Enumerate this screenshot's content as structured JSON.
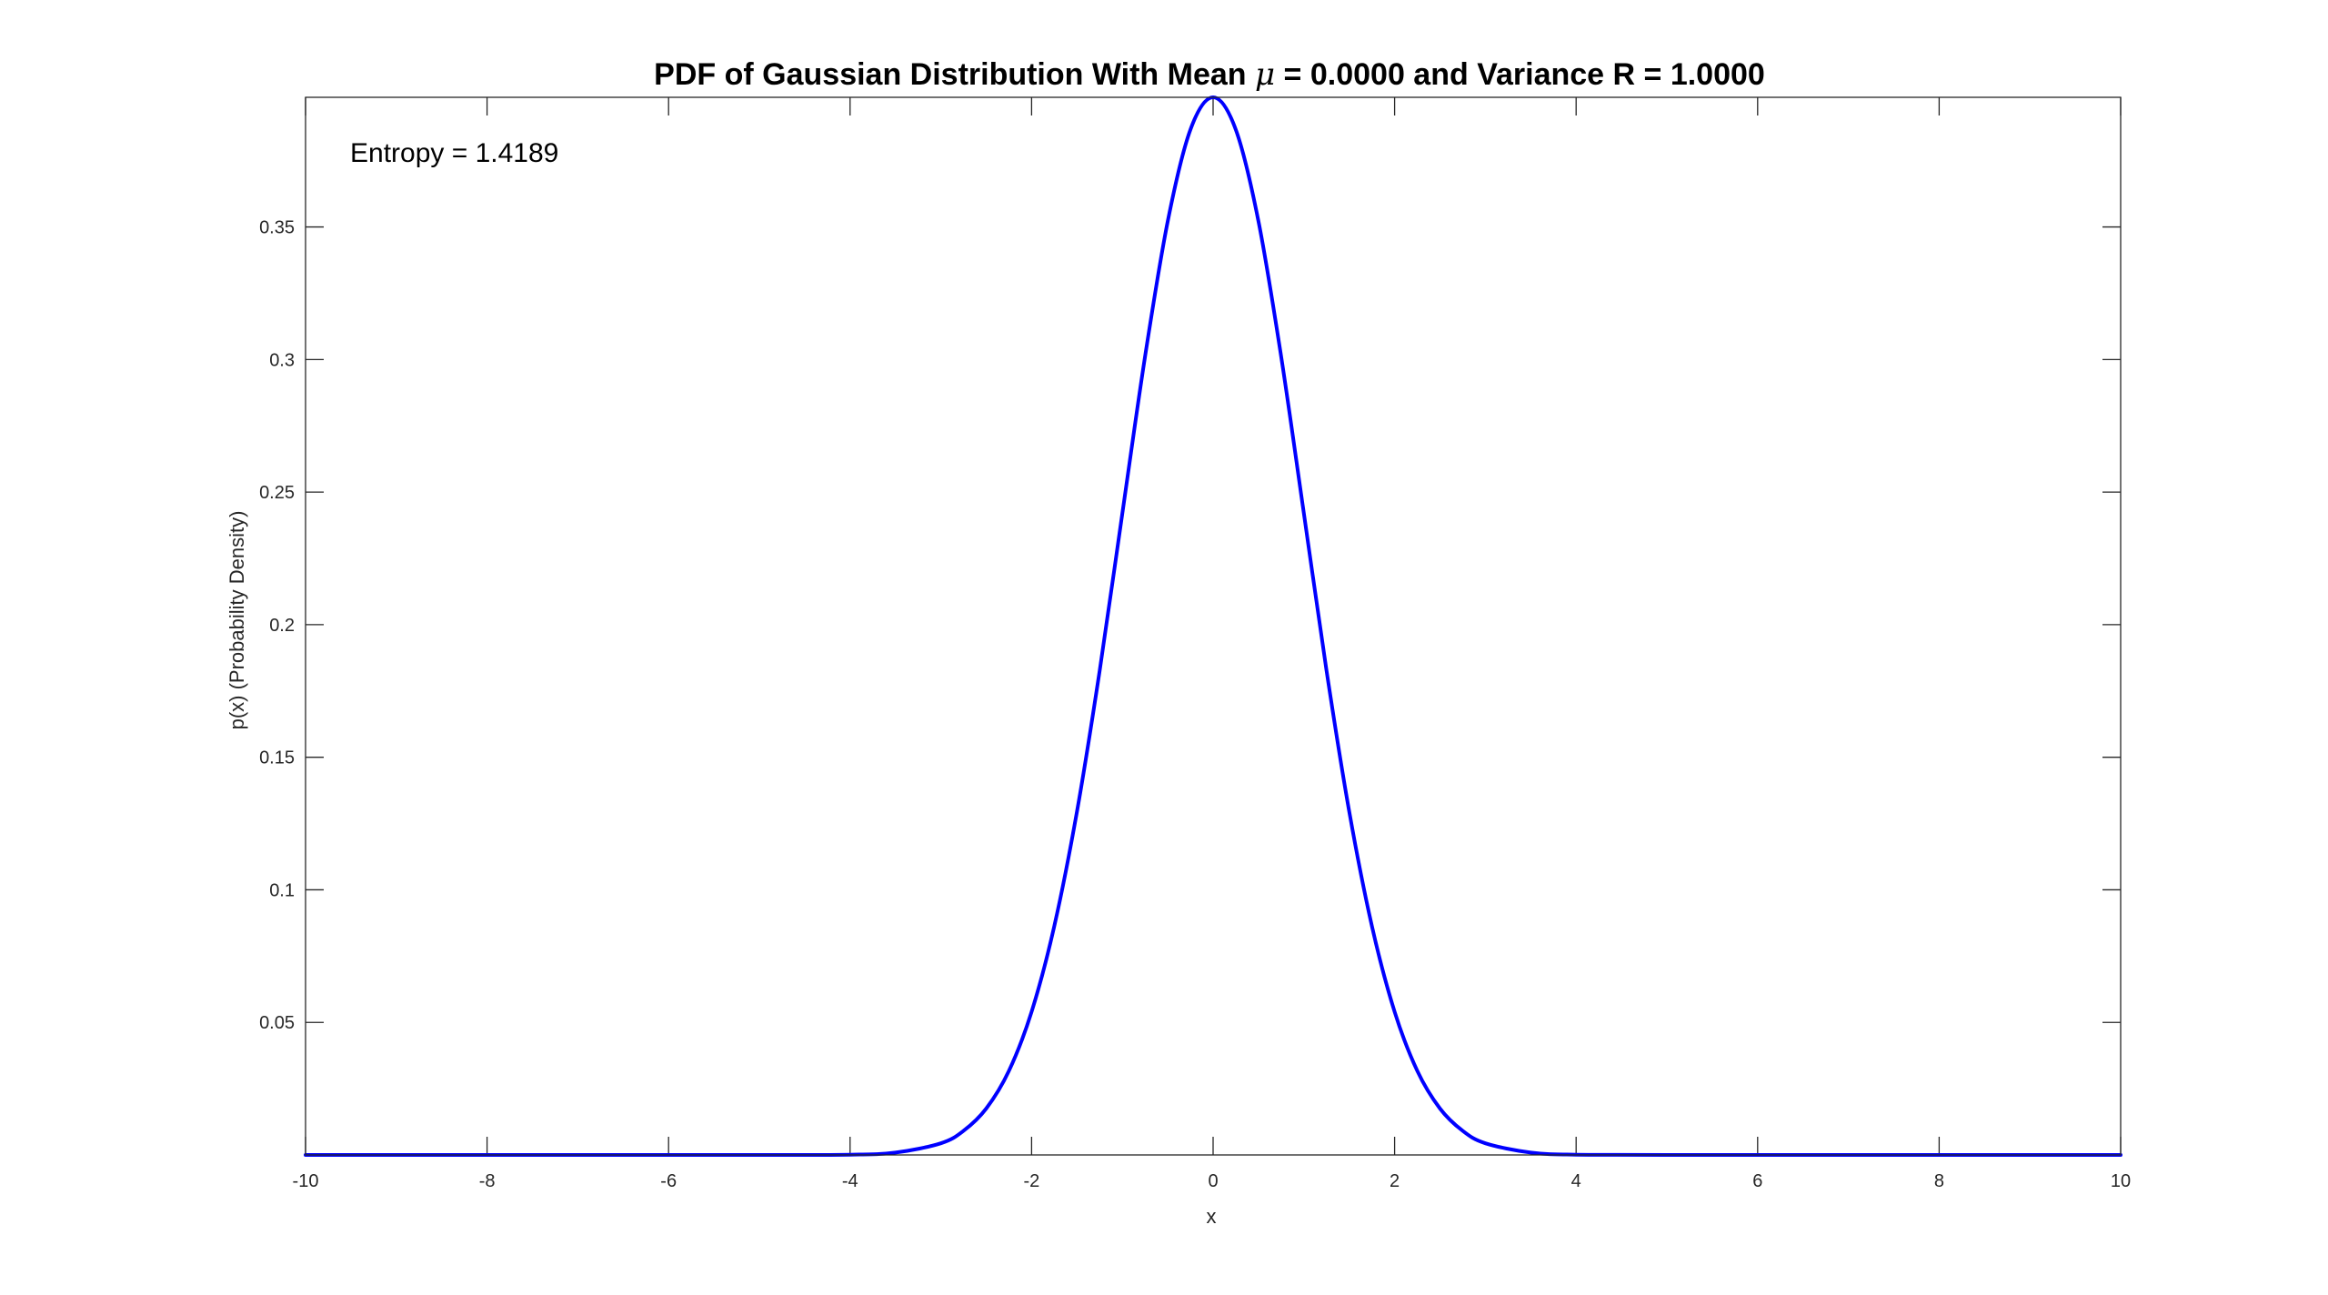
{
  "chart_data": {
    "type": "line",
    "title_prefix": "PDF of Gaussian Distribution With Mean ",
    "title_mu_symbol": "μ",
    "title_suffix": " = 0.0000 and Variance R = 1.0000",
    "xlabel": "x",
    "ylabel": "p(x) (Probability Density)",
    "annotation": "Entropy = 1.4189",
    "xlim": [
      -10,
      10
    ],
    "ylim": [
      0,
      0.3989
    ],
    "x_ticks": [
      -10,
      -8,
      -6,
      -4,
      -2,
      0,
      2,
      4,
      6,
      8,
      10
    ],
    "x_tick_labels": [
      "-10",
      "-8",
      "-6",
      "-4",
      "-2",
      "0",
      "2",
      "4",
      "6",
      "8",
      "10"
    ],
    "y_ticks": [
      0.05,
      0.1,
      0.15,
      0.2,
      0.25,
      0.3,
      0.35
    ],
    "y_tick_labels": [
      "0.05",
      "0.1",
      "0.15",
      "0.2",
      "0.25",
      "0.3",
      "0.35"
    ],
    "grid": false,
    "line_color": "#0000ff",
    "series": [
      {
        "x": [
          -10,
          -5,
          -4,
          -3.5,
          -3,
          -2.75,
          -2.5,
          -2.25,
          -2,
          -1.75,
          -1.5,
          -1.25,
          -1,
          -0.75,
          -0.5,
          -0.25,
          0,
          0.25,
          0.5,
          0.75,
          1,
          1.25,
          1.5,
          1.75,
          2,
          2.25,
          2.5,
          2.75,
          3,
          3.5,
          4,
          5,
          10
        ],
        "y": [
          0.0,
          1.5e-06,
          0.0001,
          0.0009,
          0.0044,
          0.0091,
          0.0175,
          0.0317,
          0.054,
          0.0863,
          0.1295,
          0.1826,
          0.242,
          0.3011,
          0.3521,
          0.3867,
          0.3989,
          0.3867,
          0.3521,
          0.3011,
          0.242,
          0.1826,
          0.1295,
          0.0863,
          0.054,
          0.0317,
          0.0175,
          0.0091,
          0.0044,
          0.0009,
          0.0001,
          1.5e-06,
          0.0
        ]
      }
    ]
  }
}
